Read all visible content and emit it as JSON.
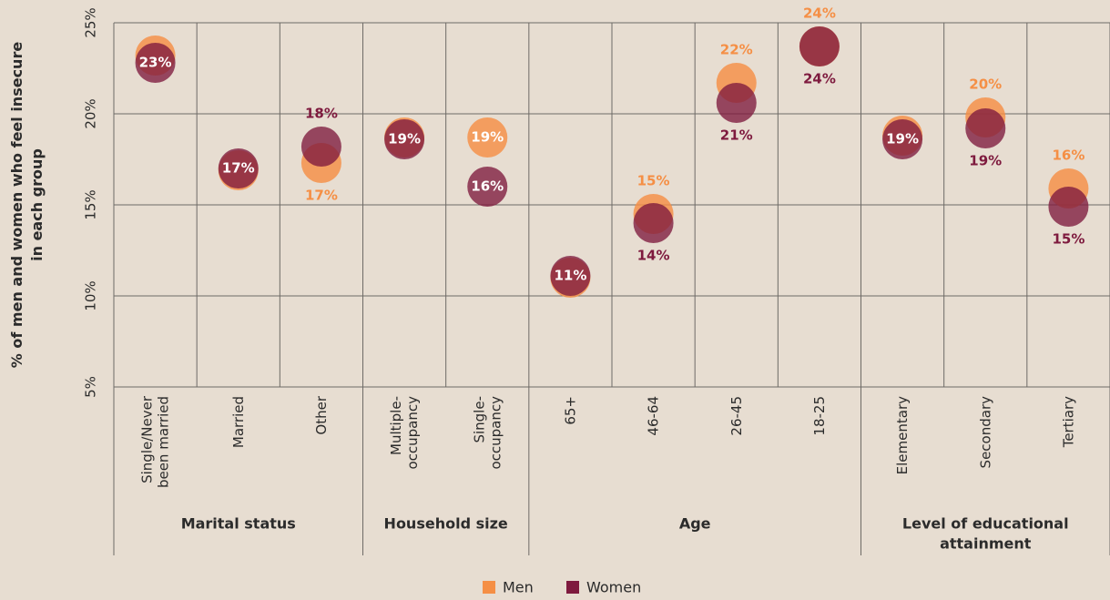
{
  "chart_data": {
    "type": "dot",
    "y_label": [
      "% of men and women who feel insecure",
      "in each group"
    ],
    "categories": [
      [
        "Single/Never",
        "been married"
      ],
      [
        "Married"
      ],
      [
        "Other"
      ],
      [
        "Multiple-",
        "occupancy"
      ],
      [
        "Single-",
        "occupancy"
      ],
      [
        "65+"
      ],
      [
        "46-64"
      ],
      [
        "26-45"
      ],
      [
        "18-25"
      ],
      [
        "Elementary"
      ],
      [
        "Secondary"
      ],
      [
        "Tertiary"
      ]
    ],
    "groups": [
      {
        "name": [
          "Marital status"
        ],
        "size": 3
      },
      {
        "name": [
          "Household size"
        ],
        "size": 2
      },
      {
        "name": [
          "Age"
        ],
        "size": 4
      },
      {
        "name": [
          "Level of educational",
          "attainment"
        ],
        "size": 3
      }
    ],
    "series": [
      {
        "name": "Men",
        "color": "#f58f45",
        "values": [
          23.2,
          16.9,
          17.3,
          18.7,
          18.7,
          11.0,
          14.5,
          21.7,
          23.7,
          18.8,
          19.8,
          15.9
        ],
        "value_labels": [
          null,
          null,
          "17%",
          null,
          "19%",
          null,
          "15%",
          "22%",
          "24%",
          null,
          "20%",
          "16%"
        ]
      },
      {
        "name": "Women",
        "color": "#7e1a3e",
        "values": [
          22.8,
          17.0,
          18.2,
          18.6,
          16.0,
          11.1,
          14.0,
          20.6,
          23.7,
          18.6,
          19.2,
          14.9
        ],
        "value_labels": [
          "23%",
          "17%",
          "18%",
          "19%",
          "16%",
          "11%",
          "14%",
          "21%",
          "24%",
          "19%",
          "19%",
          "15%"
        ]
      }
    ],
    "ylim": [
      5,
      25
    ],
    "yticks": [
      {
        "value": 5,
        "label": "5%"
      },
      {
        "value": 10,
        "label": "10%"
      },
      {
        "value": 15,
        "label": "15%"
      },
      {
        "value": 20,
        "label": "20%"
      },
      {
        "value": 25,
        "label": "25%"
      }
    ],
    "grid": true,
    "legend": "bottom"
  }
}
